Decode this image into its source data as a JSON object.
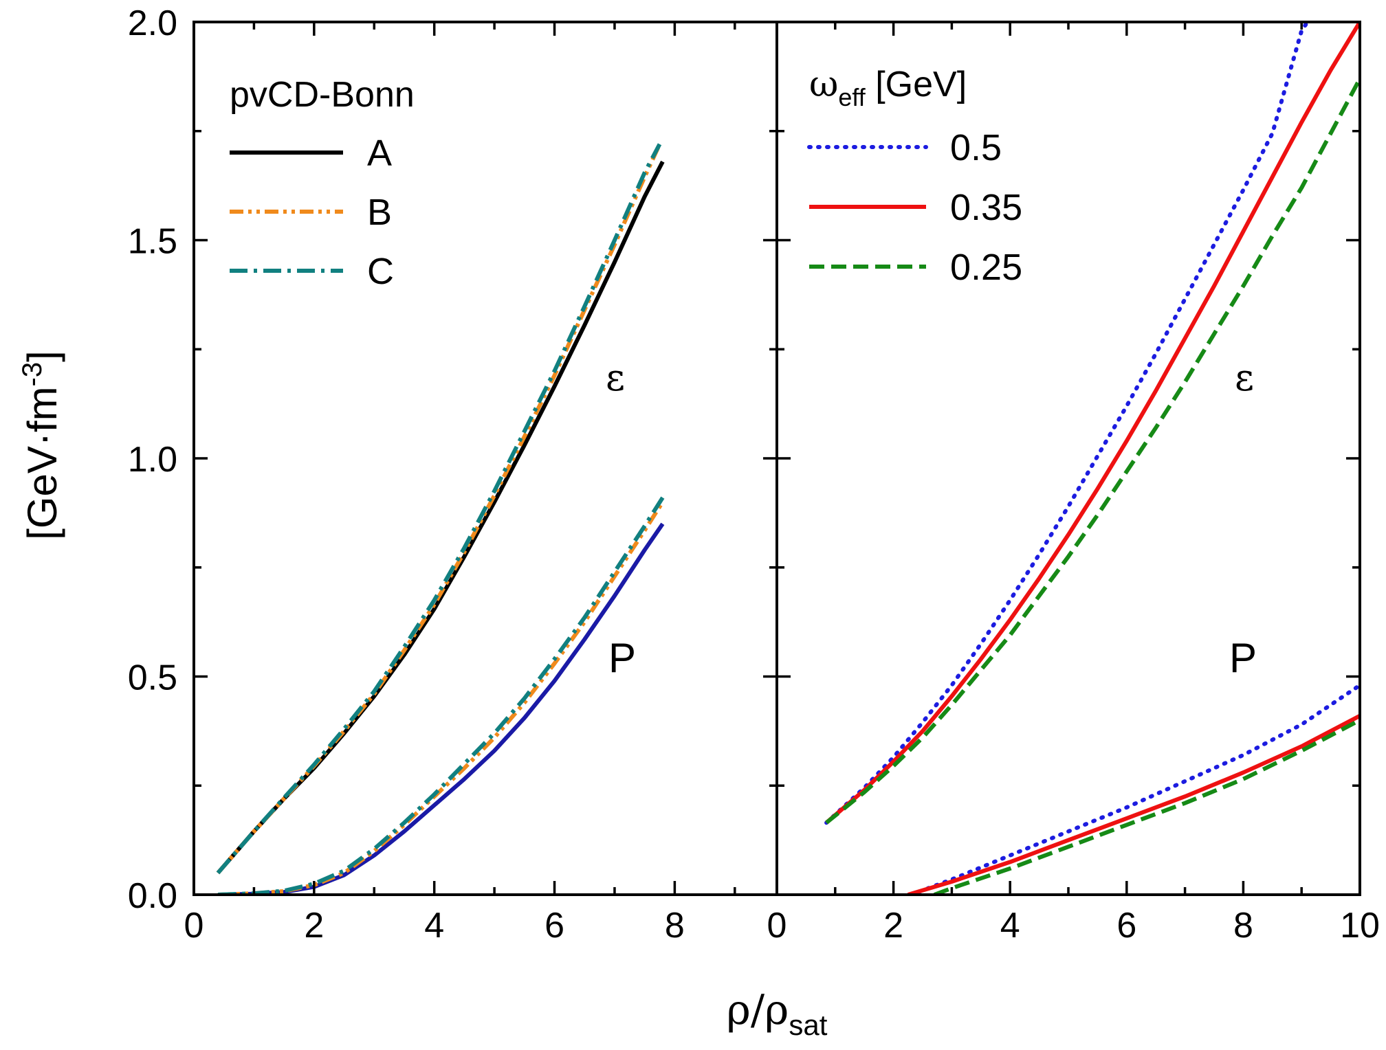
{
  "chart_data": {
    "type": "line",
    "xlabel": {
      "base": "ρ/ρ",
      "sub": "sat"
    },
    "ylabel": {
      "base": "[GeV·fm",
      "sup": "-3",
      "close": "]"
    },
    "ylim": [
      0,
      2.0
    ],
    "yticks": [
      "0.0",
      "0.5",
      "1.0",
      "1.5",
      "2.0"
    ],
    "grid": false,
    "panels": [
      {
        "xlim": [
          0,
          9.7
        ],
        "xticks": [
          "0",
          "2",
          "4",
          "6",
          "8"
        ],
        "legend_title": "pvCD-Bonn",
        "legend_position": "top-left",
        "annotations": {
          "eps": "ε",
          "p": "P"
        },
        "series": [
          {
            "name": "A",
            "color": "#000000",
            "style": "solid",
            "group": "eps",
            "x": [
              0.4,
              1,
              1.5,
              2,
              2.5,
              3,
              3.5,
              4,
              4.5,
              5,
              5.5,
              6,
              6.5,
              7,
              7.5,
              7.8
            ],
            "y": [
              0.05,
              0.145,
              0.22,
              0.29,
              0.37,
              0.455,
              0.55,
              0.655,
              0.775,
              0.9,
              1.03,
              1.165,
              1.305,
              1.45,
              1.6,
              1.68
            ]
          },
          {
            "name": "",
            "color": "#1a1aa6",
            "style": "solid",
            "group": "p",
            "x": [
              0.4,
              1,
              1.5,
              2,
              2.5,
              3,
              3.5,
              4,
              4.5,
              5,
              5.5,
              6,
              6.5,
              7,
              7.5,
              7.8
            ],
            "y": [
              0,
              0.002,
              0.006,
              0.018,
              0.045,
              0.09,
              0.145,
              0.205,
              0.265,
              0.33,
              0.405,
              0.49,
              0.585,
              0.685,
              0.79,
              0.85
            ]
          },
          {
            "name": "B",
            "color": "#f08a1c",
            "style": "dashdotdot",
            "group": "eps",
            "x": [
              0.4,
              1,
              1.5,
              2,
              2.5,
              3,
              3.5,
              4,
              4.5,
              5,
              5.5,
              6,
              6.5,
              7,
              7.5,
              7.75
            ],
            "y": [
              0.05,
              0.145,
              0.22,
              0.295,
              0.375,
              0.46,
              0.56,
              0.665,
              0.785,
              0.915,
              1.05,
              1.19,
              1.34,
              1.49,
              1.645,
              1.72
            ]
          },
          {
            "name": "",
            "color": "#f08a1c",
            "style": "dashdotdot",
            "group": "p",
            "x": [
              0.4,
              1,
              1.5,
              2,
              2.5,
              3,
              3.5,
              4,
              4.5,
              5,
              5.5,
              6,
              6.5,
              7,
              7.5,
              7.8
            ],
            "y": [
              0,
              0.003,
              0.008,
              0.022,
              0.05,
              0.1,
              0.16,
              0.225,
              0.29,
              0.36,
              0.44,
              0.53,
              0.625,
              0.73,
              0.835,
              0.9
            ]
          },
          {
            "name": "C",
            "color": "#118080",
            "style": "dashdot",
            "group": "eps",
            "x": [
              0.4,
              1,
              1.5,
              2,
              2.5,
              3,
              3.5,
              4,
              4.5,
              5,
              5.5,
              6,
              6.5,
              7,
              7.5,
              7.75
            ],
            "y": [
              0.05,
              0.145,
              0.222,
              0.298,
              0.38,
              0.466,
              0.568,
              0.675,
              0.795,
              0.925,
              1.062,
              1.2,
              1.348,
              1.5,
              1.655,
              1.72
            ]
          },
          {
            "name": "",
            "color": "#118080",
            "style": "dashdot",
            "group": "p",
            "x": [
              0.4,
              1,
              1.5,
              2,
              2.5,
              3,
              3.5,
              4,
              4.5,
              5,
              5.5,
              6,
              6.5,
              7,
              7.5,
              7.8
            ],
            "y": [
              0,
              0.003,
              0.009,
              0.025,
              0.055,
              0.105,
              0.165,
              0.23,
              0.3,
              0.37,
              0.45,
              0.54,
              0.635,
              0.74,
              0.845,
              0.91
            ]
          }
        ]
      },
      {
        "xlim": [
          0,
          10
        ],
        "xticks": [
          "0",
          "2",
          "4",
          "6",
          "8",
          "10"
        ],
        "legend_title": {
          "base": "ω",
          "sub": "eff",
          "rest": " [GeV]"
        },
        "legend_position": "top-left",
        "annotations": {
          "eps": "ε",
          "p": "P"
        },
        "series": [
          {
            "name": "0.5",
            "color": "#1c1ce0",
            "style": "dotted",
            "group": "eps",
            "x": [
              0.85,
              1.5,
              2,
              2.5,
              3,
              3.5,
              4,
              4.5,
              5,
              5.5,
              6,
              6.5,
              7,
              7.5,
              8,
              8.5,
              9,
              9.1
            ],
            "y": [
              0.165,
              0.245,
              0.315,
              0.395,
              0.48,
              0.575,
              0.675,
              0.78,
              0.89,
              1.005,
              1.12,
              1.24,
              1.365,
              1.49,
              1.615,
              1.745,
              1.98,
              2.0
            ]
          },
          {
            "name": "",
            "color": "#1c1ce0",
            "style": "dotted",
            "group": "p",
            "x": [
              2.3,
              3,
              4,
              5,
              6,
              7,
              8,
              9,
              10
            ],
            "y": [
              0,
              0.035,
              0.09,
              0.145,
              0.2,
              0.26,
              0.32,
              0.39,
              0.48
            ]
          },
          {
            "name": "0.35",
            "color": "#ee1111",
            "style": "solid",
            "group": "eps",
            "x": [
              0.85,
              1.5,
              2,
              2.5,
              3,
              3.5,
              4,
              4.5,
              5,
              5.5,
              6,
              6.5,
              7,
              7.5,
              8,
              8.5,
              9,
              9.5,
              10
            ],
            "y": [
              0.165,
              0.24,
              0.305,
              0.375,
              0.455,
              0.54,
              0.63,
              0.725,
              0.825,
              0.93,
              1.04,
              1.155,
              1.275,
              1.395,
              1.52,
              1.645,
              1.77,
              1.89,
              2.0
            ]
          },
          {
            "name": "",
            "color": "#ee1111",
            "style": "solid",
            "group": "p",
            "x": [
              2.25,
              3,
              4,
              5,
              6,
              7,
              8,
              9,
              10
            ],
            "y": [
              0,
              0.03,
              0.075,
              0.125,
              0.175,
              0.225,
              0.28,
              0.34,
              0.41
            ]
          },
          {
            "name": "0.25",
            "color": "#168a16",
            "style": "dashed",
            "group": "eps",
            "x": [
              0.85,
              1.5,
              2,
              2.5,
              3,
              3.5,
              4,
              4.5,
              5,
              5.5,
              6,
              6.5,
              7,
              7.5,
              8,
              8.5,
              9,
              9.5,
              10
            ],
            "y": [
              0.165,
              0.235,
              0.295,
              0.36,
              0.435,
              0.515,
              0.595,
              0.685,
              0.775,
              0.87,
              0.97,
              1.07,
              1.175,
              1.285,
              1.395,
              1.51,
              1.62,
              1.745,
              1.87
            ]
          },
          {
            "name": "",
            "color": "#168a16",
            "style": "dashed",
            "group": "p",
            "x": [
              2.7,
              3,
              4,
              5,
              6,
              7,
              8,
              9,
              10
            ],
            "y": [
              0,
              0.015,
              0.06,
              0.11,
              0.16,
              0.21,
              0.265,
              0.33,
              0.4
            ]
          }
        ]
      }
    ]
  }
}
